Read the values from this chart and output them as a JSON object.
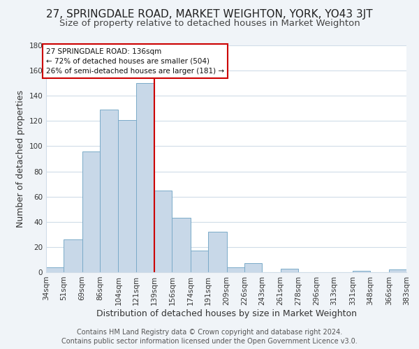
{
  "title": "27, SPRINGDALE ROAD, MARKET WEIGHTON, YORK, YO43 3JT",
  "subtitle": "Size of property relative to detached houses in Market Weighton",
  "xlabel": "Distribution of detached houses by size in Market Weighton",
  "ylabel": "Number of detached properties",
  "bar_labels": [
    "34sqm",
    "51sqm",
    "69sqm",
    "86sqm",
    "104sqm",
    "121sqm",
    "139sqm",
    "156sqm",
    "174sqm",
    "191sqm",
    "209sqm",
    "226sqm",
    "243sqm",
    "261sqm",
    "278sqm",
    "296sqm",
    "313sqm",
    "331sqm",
    "348sqm",
    "366sqm",
    "383sqm"
  ],
  "bar_values": [
    4,
    26,
    96,
    129,
    121,
    150,
    65,
    43,
    17,
    32,
    4,
    7,
    0,
    3,
    0,
    0,
    0,
    1,
    0,
    2
  ],
  "bin_edges": [
    34,
    51,
    69,
    86,
    104,
    121,
    139,
    156,
    174,
    191,
    209,
    226,
    243,
    261,
    278,
    296,
    313,
    331,
    348,
    366,
    383
  ],
  "bar_color": "#c8d8e8",
  "bar_edge_color": "#7aaac8",
  "vline_x": 139,
  "vline_color": "#cc0000",
  "annotation_title": "27 SPRINGDALE ROAD: 136sqm",
  "annotation_line1": "← 72% of detached houses are smaller (504)",
  "annotation_line2": "26% of semi-detached houses are larger (181) →",
  "annotation_box_color": "#ffffff",
  "annotation_box_edge": "#cc0000",
  "ylim": [
    0,
    180
  ],
  "yticks": [
    0,
    20,
    40,
    60,
    80,
    100,
    120,
    140,
    160,
    180
  ],
  "footer_line1": "Contains HM Land Registry data © Crown copyright and database right 2024.",
  "footer_line2": "Contains public sector information licensed under the Open Government Licence v3.0.",
  "bg_color": "#f0f4f8",
  "plot_bg_color": "#ffffff",
  "grid_color": "#d0dce8",
  "title_fontsize": 11,
  "subtitle_fontsize": 9.5,
  "axis_label_fontsize": 9,
  "tick_fontsize": 7.5,
  "footer_fontsize": 7
}
